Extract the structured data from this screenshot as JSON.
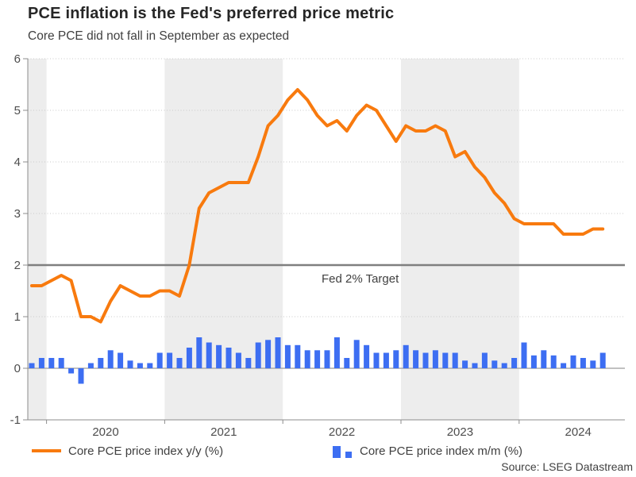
{
  "header": {
    "title": "PCE inflation is the Fed's preferred price metric",
    "subtitle": "Core PCE did not fall in September as expected"
  },
  "source": "Source: LSEG Datastream",
  "colors": {
    "line": "#F87A0E",
    "bar": "#3D6EF2",
    "target_line": "#7F7F7F",
    "band": "#EDEDED",
    "axis": "#8C8C8C",
    "zero_line": "#ABABAB",
    "grid": "#C9C9C9",
    "tick_text": "#4D4D4D",
    "text": "#404040"
  },
  "chart_data": {
    "type": "combo",
    "title": "PCE inflation is the Fed's preferred price metric",
    "subtitle": "Core PCE did not fall in September as expected",
    "ylim": [
      -1,
      6
    ],
    "y_ticks": [
      -1,
      0,
      1,
      2,
      3,
      4,
      5,
      6
    ],
    "x_tick_years": [
      "2020",
      "2021",
      "2022",
      "2023",
      "2024"
    ],
    "grid": "dotted-horizontal",
    "legend_position": "bottom",
    "shaded_bands": [
      "2019-partial",
      "2021",
      "2023"
    ],
    "target": {
      "value": 2,
      "label": "Fed 2% Target"
    },
    "months": [
      "2019-11",
      "2019-12",
      "2020-01",
      "2020-02",
      "2020-03",
      "2020-04",
      "2020-05",
      "2020-06",
      "2020-07",
      "2020-08",
      "2020-09",
      "2020-10",
      "2020-11",
      "2020-12",
      "2021-01",
      "2021-02",
      "2021-03",
      "2021-04",
      "2021-05",
      "2021-06",
      "2021-07",
      "2021-08",
      "2021-09",
      "2021-10",
      "2021-11",
      "2021-12",
      "2022-01",
      "2022-02",
      "2022-03",
      "2022-04",
      "2022-05",
      "2022-06",
      "2022-07",
      "2022-08",
      "2022-09",
      "2022-10",
      "2022-11",
      "2022-12",
      "2023-01",
      "2023-02",
      "2023-03",
      "2023-04",
      "2023-05",
      "2023-06",
      "2023-07",
      "2023-08",
      "2023-09",
      "2023-10",
      "2023-11",
      "2023-12",
      "2024-01",
      "2024-02",
      "2024-03",
      "2024-04",
      "2024-05",
      "2024-06",
      "2024-07",
      "2024-08",
      "2024-09"
    ],
    "series": [
      {
        "name": "Core PCE price index y/y (%)",
        "type": "line",
        "color": "#F87A0E",
        "values": [
          1.6,
          1.6,
          1.7,
          1.8,
          1.7,
          1.0,
          1.0,
          0.9,
          1.3,
          1.6,
          1.5,
          1.4,
          1.4,
          1.5,
          1.5,
          1.4,
          2.0,
          3.1,
          3.4,
          3.5,
          3.6,
          3.6,
          3.6,
          4.1,
          4.7,
          4.9,
          5.2,
          5.4,
          5.2,
          4.9,
          4.7,
          4.8,
          4.6,
          4.9,
          5.1,
          5.0,
          4.7,
          4.4,
          4.7,
          4.6,
          4.6,
          4.7,
          4.6,
          4.1,
          4.2,
          3.9,
          3.7,
          3.4,
          3.2,
          2.9,
          2.8,
          2.8,
          2.8,
          2.8,
          2.6,
          2.6,
          2.6,
          2.7,
          2.7
        ]
      },
      {
        "name": "Core PCE price index m/m (%)",
        "type": "bar",
        "color": "#3D6EF2",
        "values": [
          0.1,
          0.2,
          0.2,
          0.2,
          -0.1,
          -0.3,
          0.1,
          0.2,
          0.35,
          0.3,
          0.15,
          0.1,
          0.1,
          0.3,
          0.3,
          0.2,
          0.4,
          0.6,
          0.5,
          0.45,
          0.4,
          0.3,
          0.2,
          0.5,
          0.55,
          0.6,
          0.45,
          0.45,
          0.35,
          0.35,
          0.35,
          0.6,
          0.2,
          0.55,
          0.45,
          0.3,
          0.3,
          0.35,
          0.45,
          0.35,
          0.3,
          0.35,
          0.3,
          0.3,
          0.15,
          0.1,
          0.3,
          0.15,
          0.1,
          0.2,
          0.5,
          0.25,
          0.35,
          0.25,
          0.1,
          0.25,
          0.2,
          0.15,
          0.3
        ]
      }
    ]
  }
}
